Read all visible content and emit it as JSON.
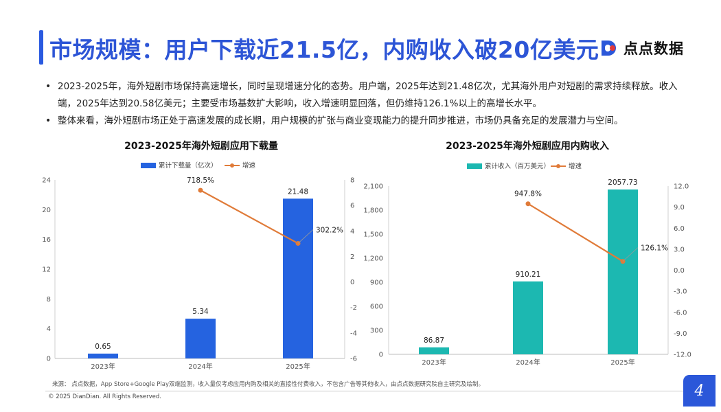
{
  "page": {
    "title": "市场规模：用户下载近21.5亿，内购收入破20亿美元",
    "logo_text": "点点数据",
    "page_number": "4",
    "accent_color": "#2d55d6"
  },
  "bullets": [
    "2023-2025年，海外短剧市场保持高速增长，同时呈现增速分化的态势。用户端，2025年达到21.48亿次，尤其海外用户对短剧的需求持续释放。收入端，2025年达到20.58亿美元；主要受市场基数扩大影响，收入增速明显回落，但仍维持126.1%以上的高增长水平。",
    "整体来看，海外短剧市场正处于高速发展的成长期，用户规模的扩张与商业变现能力的提升同步推进，市场仍具备充足的发展潜力与空间。"
  ],
  "footer": {
    "source": "来源： 点点数据，App Store+Google Play双端监测，收入量仅考虑应用内购及相关的直接性付费收入，不包含广告等其他收入，由点点数据研究院自主研究及绘制。",
    "copyright": "© 2025 DianDian. All Rights Reserved."
  },
  "chart_data": [
    {
      "type": "bar",
      "title": "2023-2025年海外短剧应用下载量",
      "categories": [
        "2023年",
        "2024年",
        "2025年"
      ],
      "series": [
        {
          "name": "累计下载量（亿次）",
          "type": "bar",
          "axis": "left",
          "values": [
            0.65,
            5.34,
            21.48
          ],
          "labels": [
            "0.65",
            "5.34",
            "21.48"
          ],
          "color": "#2563e0"
        },
        {
          "name": "增速",
          "type": "line",
          "axis": "right",
          "values": [
            null,
            7.185,
            3.022
          ],
          "labels": [
            "",
            "718.5%",
            "302.2%"
          ],
          "color": "#e07b39"
        }
      ],
      "ylim_left": [
        0,
        24
      ],
      "yticks_left": [
        "0",
        "4",
        "8",
        "12",
        "16",
        "20",
        "24"
      ],
      "ylim_right": [
        -6,
        8
      ],
      "yticks_right": [
        "-6",
        "-4",
        "-2",
        "0",
        "2",
        "4",
        "6",
        "8"
      ],
      "legend": "top-center"
    },
    {
      "type": "bar",
      "title": "2023-2025年海外短剧应用内购收入",
      "categories": [
        "2023年",
        "2024年",
        "2025年"
      ],
      "series": [
        {
          "name": "累计收入（百万美元）",
          "type": "bar",
          "axis": "left",
          "values": [
            86.87,
            910.21,
            2057.73
          ],
          "labels": [
            "86.87",
            "910.21",
            "2057.73"
          ],
          "color": "#1cb8b1"
        },
        {
          "name": "增速",
          "type": "line",
          "axis": "right",
          "values": [
            null,
            9.478,
            1.261
          ],
          "labels": [
            "",
            "947.8%",
            "126.1%"
          ],
          "color": "#e07b39"
        }
      ],
      "ylim_left": [
        0,
        2100
      ],
      "yticks_left": [
        "0",
        "300",
        "600",
        "900",
        "1,200",
        "1,500",
        "1,800",
        "2,100"
      ],
      "ylim_right": [
        -12,
        12
      ],
      "yticks_right": [
        "-12.0",
        "-9.0",
        "-6.0",
        "-3.0",
        "0.0",
        "3.0",
        "6.0",
        "9.0",
        "12.0"
      ],
      "legend": "top-center"
    }
  ]
}
